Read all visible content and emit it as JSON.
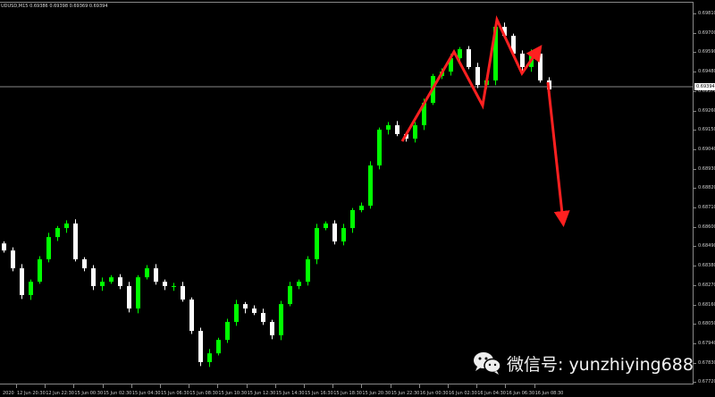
{
  "header": {
    "symbol": "UDUSD,M15",
    "ohlc": "0.69386 0.69398 0.69369 0.69394"
  },
  "current_price": "0.69394",
  "colors": {
    "bull": "#00ff00",
    "bear": "#ffffff",
    "arrow": "#ff2020",
    "grid_line": "#888888"
  },
  "watermark": {
    "icon": "wechat-icon",
    "text": "微信号: yunzhiying688"
  },
  "chart_data": {
    "type": "candlestick",
    "symbol": "UDUSD,M15",
    "y_ticks": [
      "0.69810",
      "0.69700",
      "0.69590",
      "0.69480",
      "0.69370",
      "0.69260",
      "0.69150",
      "0.69040",
      "0.68930",
      "0.68820",
      "0.68710",
      "0.68600",
      "0.68490",
      "0.68380",
      "0.68270",
      "0.68160",
      "0.68050",
      "0.67940",
      "0.67830",
      "0.67720"
    ],
    "ylim": [
      0.6772,
      0.6981
    ],
    "x_ticks": [
      "2020",
      "12 Jun 20:30",
      "12 Jun 22:30",
      "15 Jun 00:30",
      "15 Jun 02:30",
      "15 Jun 04:30",
      "15 Jun 06:30",
      "15 Jun 08:30",
      "15 Jun 10:30",
      "15 Jun 12:30",
      "15 Jun 14:30",
      "15 Jun 16:30",
      "15 Jun 18:30",
      "15 Jun 20:30",
      "15 Jun 22:30",
      "16 Jun 00:30",
      "16 Jun 02:30",
      "16 Jun 04:30",
      "16 Jun 06:30",
      "16 Jun 08:30"
    ],
    "closes": [
      0.68466,
      0.68365,
      0.68213,
      0.68289,
      0.68416,
      0.68542,
      0.68593,
      0.68619,
      0.68416,
      0.68365,
      0.68264,
      0.68289,
      0.68314,
      0.68264,
      0.68137,
      0.68314,
      0.68365,
      0.68289,
      0.68264,
      0.68264,
      0.68188,
      0.6801,
      0.67833,
      0.67883,
      0.67959,
      0.68061,
      0.68162,
      0.68137,
      0.68112,
      0.68061,
      0.67985,
      0.68162,
      0.68264,
      0.68289,
      0.68416,
      0.68593,
      0.68619,
      0.68517,
      0.68593,
      0.68695,
      0.6872,
      0.68948,
      0.69151,
      0.69176,
      0.69126,
      0.691,
      0.69176,
      0.69303,
      0.69455,
      0.6948,
      0.69556,
      0.69607,
      0.69506,
      0.69404,
      0.6943,
      0.69734,
      0.69683,
      0.69582,
      0.69506,
      0.69582,
      0.6943,
      0.69379
    ]
  }
}
